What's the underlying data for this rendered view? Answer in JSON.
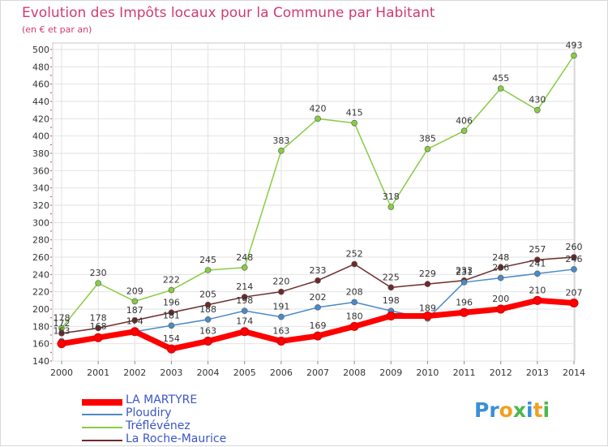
{
  "header": {
    "title": "Evolution des Impôts locaux pour la Commune par Habitant",
    "subtitle": "(en € et par an)"
  },
  "logo": {
    "text": "Proxiti"
  },
  "chart_data": {
    "type": "line",
    "title": "Evolution des Impôts locaux pour la Commune par Habitant",
    "subtitle": "(en € et par an)",
    "x": [
      "2000",
      "2001",
      "2002",
      "2003",
      "2004",
      "2005",
      "2006",
      "2007",
      "2008",
      "2009",
      "2010",
      "2011",
      "2012",
      "2013",
      "2014"
    ],
    "yticks": [
      "140",
      "160",
      "180",
      "200",
      "220",
      "240",
      "260",
      "280",
      "300",
      "320",
      "340",
      "360",
      "380",
      "400",
      "420",
      "440",
      "460",
      "480",
      "500"
    ],
    "ylim": [
      140,
      500
    ],
    "grid": true,
    "legend_position": "bottom-left",
    "series": [
      {
        "name": "LA MARTYRE",
        "color": "#ff0000",
        "values": [
          160,
          167,
          174,
          154,
          163,
          174,
          163,
          169,
          180,
          192,
          192,
          196,
          200,
          210,
          207
        ],
        "labels": [
          "",
          "",
          "",
          "154",
          "163",
          "174",
          "163",
          "169",
          "180",
          "",
          "",
          "196",
          "200",
          "210",
          "207"
        ]
      },
      {
        "name": "Ploudiry",
        "color": "#4a8ac8",
        "values": [
          163,
          168,
          174,
          181,
          188,
          198,
          191,
          202,
          208,
          198,
          189,
          231,
          236,
          241,
          246
        ],
        "labels": [
          "163",
          "168",
          "174",
          "181",
          "188",
          "198",
          "191",
          "202",
          "208",
          "198",
          "189",
          "231",
          "236",
          "241",
          "246"
        ]
      },
      {
        "name": "Tréflévénez",
        "color": "#88cc44",
        "values": [
          178,
          230,
          209,
          222,
          245,
          248,
          383,
          420,
          415,
          318,
          385,
          406,
          455,
          430,
          493
        ],
        "labels": [
          "178",
          "230",
          "209",
          "222",
          "245",
          "248",
          "383",
          "420",
          "415",
          "318",
          "385",
          "406",
          "455",
          "430",
          "493"
        ]
      },
      {
        "name": "La Roche-Maurice",
        "color": "#6e2a2a",
        "values": [
          172,
          178,
          187,
          196,
          205,
          214,
          220,
          233,
          252,
          225,
          229,
          233,
          248,
          257,
          260
        ],
        "labels": [
          "172",
          "178",
          "187",
          "196",
          "205",
          "214",
          "220",
          "233",
          "252",
          "225",
          "229",
          "233",
          "248",
          "257",
          "260"
        ]
      }
    ]
  }
}
